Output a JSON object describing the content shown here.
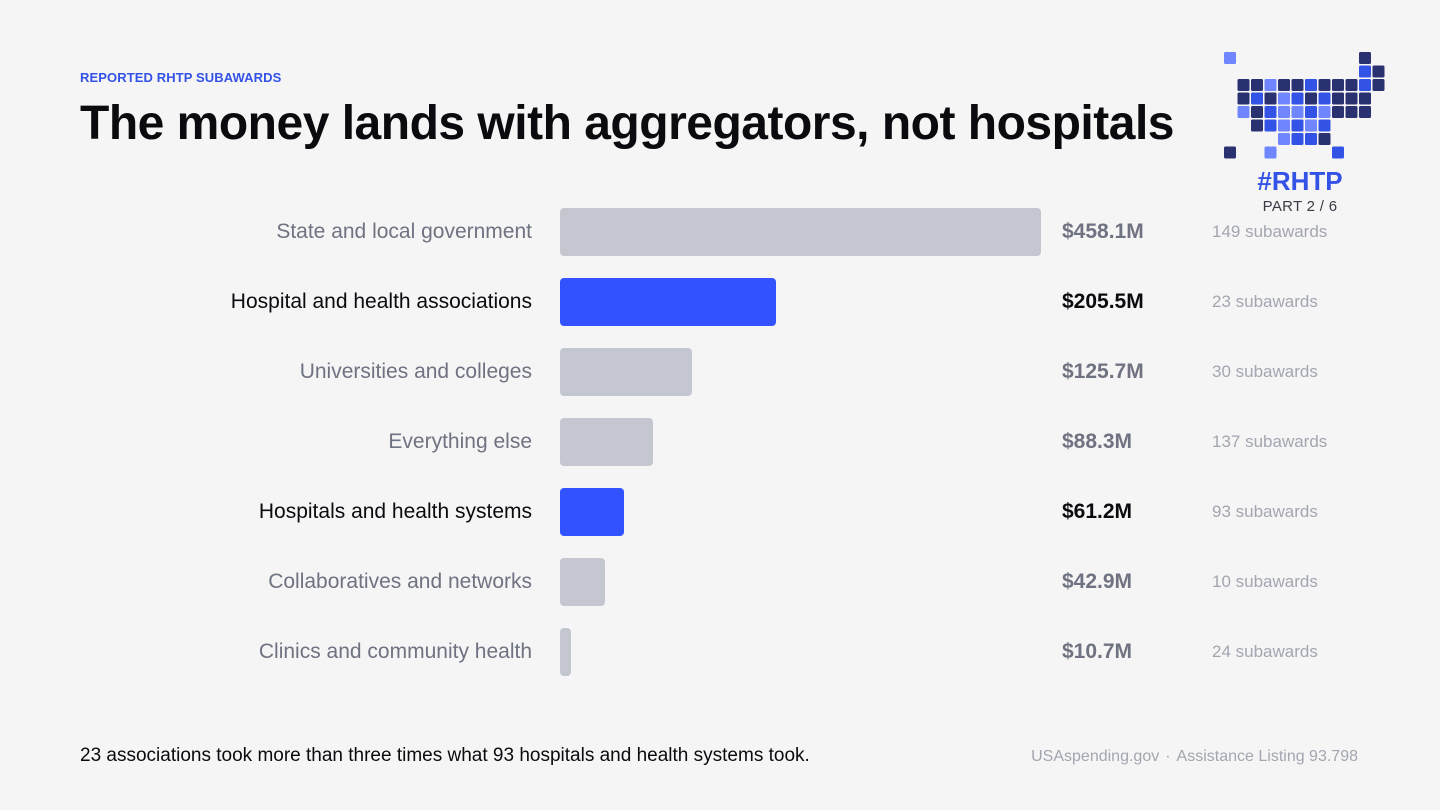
{
  "eyebrow": "REPORTED RHTP SUBAWARDS",
  "title": "The money lands with aggregators, not hospitals",
  "badge": {
    "tag": "#RHTP",
    "part": "PART 2 / 6",
    "colors": [
      "#2a3170",
      "#3352e6",
      "#6f86ff",
      "#1f2447"
    ]
  },
  "colors": {
    "highlight": "#3352ff",
    "muted_bar": "#c5c7d0",
    "accent_text": "#3352e6"
  },
  "chart_data": {
    "type": "bar",
    "orientation": "horizontal",
    "categories": [
      "State and local government",
      "Hospital and health associations",
      "Universities and colleges",
      "Everything else",
      "Hospitals and health systems",
      "Collaboratives and networks",
      "Clinics and community health"
    ],
    "values": [
      458.1,
      205.5,
      125.7,
      88.3,
      61.2,
      42.9,
      10.7
    ],
    "value_labels": [
      "$458.1M",
      "$205.5M",
      "$125.7M",
      "$88.3M",
      "$61.2M",
      "$42.9M",
      "$10.7M"
    ],
    "subaward_counts": [
      "149 subawards",
      "23 subawards",
      "30 subawards",
      "137 subawards",
      "93 subawards",
      "10 subawards",
      "24 subawards"
    ],
    "highlighted": [
      false,
      true,
      false,
      false,
      true,
      false,
      false
    ],
    "xlim": [
      0,
      458.1
    ],
    "grid": false
  },
  "footnote": "23 associations took more than three times what 93 hospitals and health systems took.",
  "source": {
    "site": "USAspending.gov",
    "separator": "·",
    "listing": "Assistance Listing 93.798"
  }
}
